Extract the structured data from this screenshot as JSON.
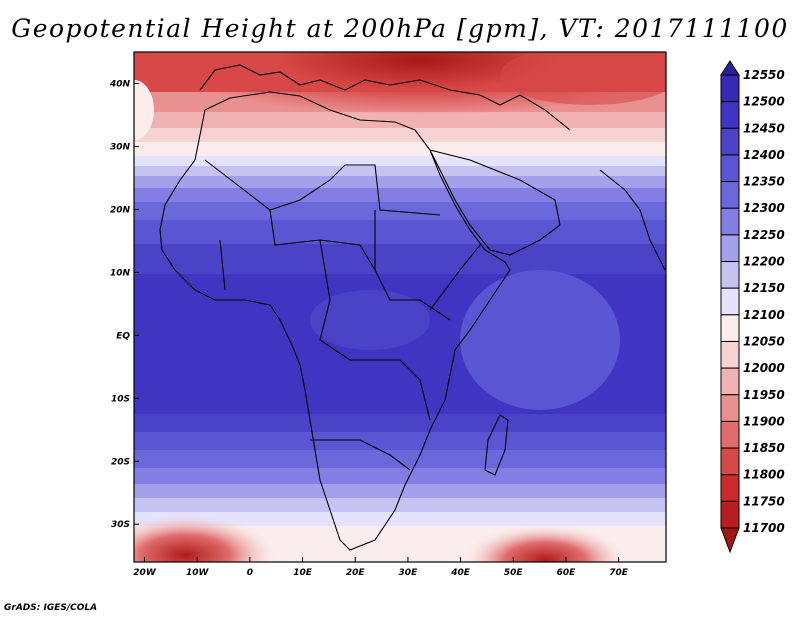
{
  "title": "Geopotential Height at 200hPa [gpm], VT: 2017111100",
  "credit": "GrADS: IGES/COLA",
  "map": {
    "lat_labels": [
      "40N",
      "30N",
      "20N",
      "10N",
      "EQ",
      "10S",
      "20S",
      "30S"
    ],
    "lon_labels": [
      "20W",
      "10W",
      "0",
      "10E",
      "20E",
      "30E",
      "40E",
      "50E",
      "60E",
      "70E"
    ],
    "lon_range": [
      -22,
      79
    ],
    "lat_range": [
      -36,
      45
    ]
  },
  "colorbar": {
    "levels": [
      "12550",
      "12500",
      "12450",
      "12400",
      "12350",
      "12300",
      "12250",
      "12200",
      "12150",
      "12100",
      "12050",
      "12000",
      "11950",
      "11900",
      "11850",
      "11800",
      "11750",
      "11700"
    ],
    "colors": [
      "#2a1f9e",
      "#3629b4",
      "#3f35c2",
      "#4a43c8",
      "#5a55d2",
      "#6b68dc",
      "#837ee4",
      "#a5a0ec",
      "#c6c3f3",
      "#e4e3fb",
      "#fbeded",
      "#f6d2d2",
      "#f0b2b2",
      "#e99090",
      "#e06c6c",
      "#d84848",
      "#cc2a2a",
      "#b81e1e",
      "#a21616"
    ]
  }
}
